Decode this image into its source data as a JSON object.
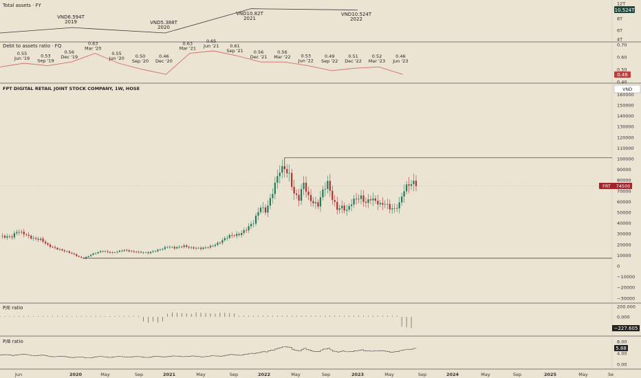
{
  "colors": {
    "background": "#ece4d3",
    "divider": "#555555",
    "up": "#1f7a5c",
    "down": "#b32d2e",
    "line_dark": "#3a3a3a",
    "debt_line": "#d26b6b",
    "price_tag": "#a0262c",
    "total_assets_tag": "#1e4a3c",
    "debt_tag": "#c0393b",
    "dark_tag": "#222222"
  },
  "panels": {
    "total_assets": {
      "title": "Total assets · FY",
      "axis_labels": [
        "12T",
        "8T",
        "6T",
        "4T"
      ],
      "last_value_tag": "10.524T"
    },
    "debt_ratio": {
      "title": "Debt to assets ratio · FQ",
      "axis_labels": [
        "0.70",
        "0.60",
        "0.50",
        "0.40"
      ],
      "last_value_tag": "0.46"
    },
    "main": {
      "title": "FPT DIGITAL RETAIL JOINT STOCK COMPANY, 1W, HOSE",
      "currency_button": "VND",
      "axis_labels": [
        "160000",
        "150000",
        "140000",
        "130000",
        "120000",
        "110000",
        "100000",
        "90000",
        "80000",
        "70000",
        "60000",
        "50000",
        "40000",
        "30000",
        "20000",
        "10000",
        "0",
        "−10000",
        "−20000",
        "−30000"
      ],
      "price_tag": {
        "symbol": "FRT",
        "value": "74500"
      }
    },
    "pe_ratio": {
      "title": "P/E ratio",
      "axis_labels": [
        "200.000",
        "0.000"
      ],
      "last_value_tag": "−227.605"
    },
    "pb_ratio": {
      "title": "P/B ratio",
      "axis_labels": [
        "8.00",
        "4.00",
        "0.00"
      ],
      "last_value_tag": "5.88"
    }
  },
  "time_axis": [
    "Jun",
    "2020",
    "May",
    "Sep",
    "2021",
    "May",
    "Sep",
    "2022",
    "May",
    "Sep",
    "2023",
    "May",
    "Sep",
    "2024",
    "May",
    "Sep",
    "2025",
    "May",
    "Se"
  ],
  "chart_data": [
    {
      "type": "line",
      "name": "total-assets",
      "points": [
        {
          "x": "2019",
          "value": "VND6.594T",
          "label": "2019",
          "y": 6.594
        },
        {
          "x": "2020",
          "value": "VND5.388T",
          "label": "2020",
          "y": 5.388
        },
        {
          "x": "2021",
          "value": "VND10.82T",
          "label": "2021",
          "y": 10.82
        },
        {
          "x": "2022",
          "value": "VND10.524T",
          "label": "2022",
          "y": 10.524
        }
      ]
    },
    {
      "type": "line",
      "name": "debt-to-assets",
      "points": [
        {
          "v": "0.55",
          "q": "Jun '19",
          "y": 0.55
        },
        {
          "v": "0.53",
          "q": "Sep '19",
          "y": 0.53
        },
        {
          "v": "0.56",
          "q": "Dec '19",
          "y": 0.56
        },
        {
          "v": "0.63",
          "q": "Mar '20",
          "y": 0.63
        },
        {
          "v": "0.55",
          "q": "Jun '20",
          "y": 0.55
        },
        {
          "v": "0.50",
          "q": "Sep '20",
          "y": 0.5
        },
        {
          "v": "0.46",
          "q": "Dec '20",
          "y": 0.46
        },
        {
          "v": "0.63",
          "q": "Mar '21",
          "y": 0.63
        },
        {
          "v": "0.65",
          "q": "Jun '21",
          "y": 0.65
        },
        {
          "v": "0.61",
          "q": "Sep '21",
          "y": 0.61
        },
        {
          "v": "0.56",
          "q": "Dec '21",
          "y": 0.56
        },
        {
          "v": "0.56",
          "q": "Mar '22",
          "y": 0.56
        },
        {
          "v": "0.53",
          "q": "Jun '22",
          "y": 0.53
        },
        {
          "v": "0.49",
          "q": "Sep '22",
          "y": 0.49
        },
        {
          "v": "0.51",
          "q": "Dec '22",
          "y": 0.51
        },
        {
          "v": "0.52",
          "q": "Mar '23",
          "y": 0.52
        },
        {
          "v": "0.46",
          "q": "Jun '23",
          "y": 0.46
        }
      ]
    },
    {
      "type": "candlestick",
      "name": "price-weekly",
      "anchors": [
        [
          0,
          28000
        ],
        [
          5,
          27500
        ],
        [
          7,
          31500
        ],
        [
          10,
          30000
        ],
        [
          14,
          26000
        ],
        [
          17,
          24500
        ],
        [
          20,
          19000
        ],
        [
          25,
          15500
        ],
        [
          30,
          11500
        ],
        [
          33,
          8500
        ],
        [
          35,
          7200
        ],
        [
          38,
          10500
        ],
        [
          43,
          14000
        ],
        [
          47,
          12500
        ],
        [
          52,
          14500
        ],
        [
          58,
          13000
        ],
        [
          62,
          12000
        ],
        [
          66,
          15000
        ],
        [
          70,
          18000
        ],
        [
          73,
          16500
        ],
        [
          77,
          19000
        ],
        [
          80,
          17000
        ],
        [
          84,
          16000
        ],
        [
          88,
          18500
        ],
        [
          92,
          22000
        ],
        [
          96,
          28000
        ],
        [
          100,
          30000
        ],
        [
          103,
          34000
        ],
        [
          106,
          40000
        ],
        [
          109,
          56000
        ],
        [
          111,
          52000
        ],
        [
          113,
          62000
        ],
        [
          115,
          75000
        ],
        [
          117,
          88000
        ],
        [
          119,
          92000
        ],
        [
          121,
          86000
        ],
        [
          123,
          68000
        ],
        [
          125,
          62000
        ],
        [
          127,
          76000
        ],
        [
          129,
          64000
        ],
        [
          131,
          60000
        ],
        [
          133,
          58000
        ],
        [
          135,
          70000
        ],
        [
          137,
          76000
        ],
        [
          139,
          62000
        ],
        [
          141,
          54000
        ],
        [
          143,
          56000
        ],
        [
          145,
          52000
        ],
        [
          147,
          58000
        ],
        [
          149,
          62000
        ],
        [
          151,
          64000
        ],
        [
          153,
          60000
        ],
        [
          155,
          64000
        ],
        [
          157,
          60000
        ],
        [
          159,
          56000
        ],
        [
          161,
          58000
        ],
        [
          163,
          55000
        ],
        [
          165,
          54000
        ],
        [
          167,
          58000
        ],
        [
          169,
          70000
        ],
        [
          171,
          75000
        ],
        [
          173,
          78000
        ],
        [
          174,
          74500
        ]
      ],
      "high_line": 101000,
      "low_line": 7200,
      "last": 74500
    },
    {
      "type": "bar",
      "name": "pe-ratio",
      "segments": [
        {
          "from": 0,
          "to": 60,
          "value": 15
        },
        {
          "from": 60,
          "to": 70,
          "value": -120
        },
        {
          "from": 70,
          "to": 100,
          "value": 80
        },
        {
          "from": 100,
          "to": 168,
          "value": 20
        },
        {
          "from": 168,
          "to": 174,
          "value": -227.605
        }
      ],
      "ylim": [
        -260,
        230
      ]
    },
    {
      "type": "line",
      "name": "pb-ratio",
      "last": 5.88,
      "ylim": [
        0,
        9
      ]
    }
  ]
}
